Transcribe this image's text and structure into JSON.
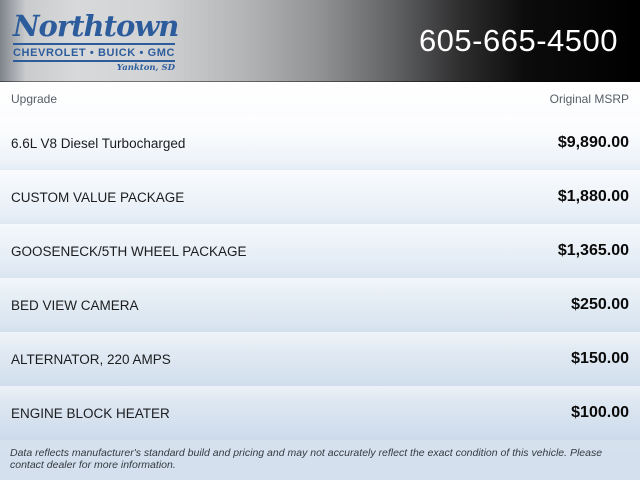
{
  "header": {
    "logo": {
      "name": "Northtown",
      "brands": "CHEVROLET • BUICK • GMC",
      "location": "Yankton, SD"
    },
    "phone": "605-665-4500"
  },
  "table": {
    "columns": {
      "upgrade": "Upgrade",
      "msrp": "Original MSRP"
    },
    "rows": [
      {
        "label": "6.6L V8 Diesel Turbocharged",
        "price": "$9,890.00"
      },
      {
        "label": "CUSTOM VALUE PACKAGE",
        "price": "$1,880.00"
      },
      {
        "label": "GOOSENECK/5TH WHEEL PACKAGE",
        "price": "$1,365.00"
      },
      {
        "label": "BED VIEW CAMERA",
        "price": "$250.00"
      },
      {
        "label": "ALTERNATOR, 220 AMPS",
        "price": "$150.00"
      },
      {
        "label": "ENGINE BLOCK HEATER",
        "price": "$100.00"
      }
    ]
  },
  "footer": {
    "disclaimer": "Data reflects manufacturer's standard build and pricing and may not accurately reflect the exact condition of this vehicle. Please contact dealer for more information."
  },
  "colors": {
    "logo_blue": "#2d5c9c",
    "phone_text": "#ffffff",
    "column_header_text": "#565e66",
    "row_label_text": "#1b1d1f",
    "price_text": "#0a0a0a",
    "content_bottom_blue": "#d3dfed"
  }
}
